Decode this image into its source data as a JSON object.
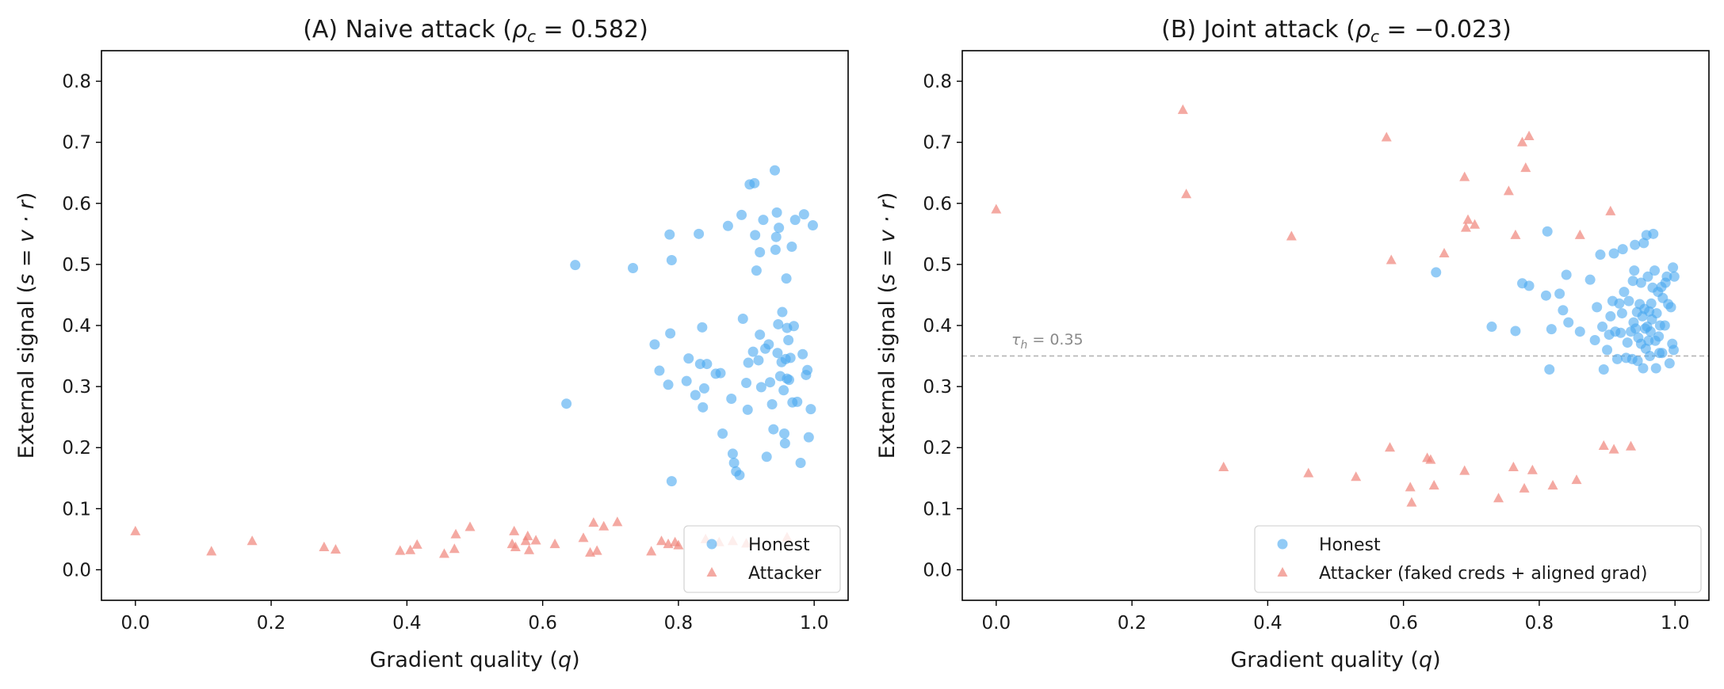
{
  "colors": {
    "honest": "#4aa8f0",
    "attacker": "#f0857a",
    "threshold": "#b0b0b0",
    "axis": "#000000"
  },
  "chart_data": [
    {
      "type": "scatter",
      "title": "(A) Naive attack (ρc = 0.582)",
      "title_parts": {
        "prefix": "(A) Naive attack (",
        "rho": "ρ",
        "sub": "c",
        "suffix": " = 0.582)"
      },
      "xlabel": "Gradient quality (q)",
      "xlabel_parts": {
        "text": "Gradient quality (",
        "var": "q",
        "close": ")"
      },
      "ylabel": "External signal (s = v · r)",
      "ylabel_parts": {
        "text": "External signal (",
        "eq": "s = v · r",
        "close": ")"
      },
      "xlim": [
        -0.05,
        1.05
      ],
      "ylim": [
        -0.05,
        0.85
      ],
      "xticks": [
        "0.0",
        "0.2",
        "0.4",
        "0.6",
        "0.8",
        "1.0"
      ],
      "yticks": [
        "0.0",
        "0.1",
        "0.2",
        "0.3",
        "0.4",
        "0.5",
        "0.6",
        "0.7",
        "0.8"
      ],
      "legend": {
        "position": "lower right",
        "entries": [
          "Honest",
          "Attacker"
        ]
      },
      "series": [
        {
          "name": "Honest",
          "marker": "circle",
          "points": [
            [
              0.635,
              0.272
            ],
            [
              0.648,
              0.499
            ],
            [
              0.733,
              0.494
            ],
            [
              0.765,
              0.369
            ],
            [
              0.772,
              0.326
            ],
            [
              0.785,
              0.303
            ],
            [
              0.787,
              0.549
            ],
            [
              0.788,
              0.387
            ],
            [
              0.79,
              0.507
            ],
            [
              0.79,
              0.145
            ],
            [
              0.812,
              0.309
            ],
            [
              0.815,
              0.346
            ],
            [
              0.825,
              0.286
            ],
            [
              0.83,
              0.55
            ],
            [
              0.832,
              0.337
            ],
            [
              0.835,
              0.397
            ],
            [
              0.836,
              0.266
            ],
            [
              0.838,
              0.297
            ],
            [
              0.842,
              0.337
            ],
            [
              0.855,
              0.321
            ],
            [
              0.862,
              0.322
            ],
            [
              0.865,
              0.223
            ],
            [
              0.873,
              0.563
            ],
            [
              0.878,
              0.28
            ],
            [
              0.88,
              0.19
            ],
            [
              0.882,
              0.175
            ],
            [
              0.885,
              0.161
            ],
            [
              0.89,
              0.155
            ],
            [
              0.893,
              0.581
            ],
            [
              0.895,
              0.411
            ],
            [
              0.9,
              0.306
            ],
            [
              0.902,
              0.262
            ],
            [
              0.903,
              0.339
            ],
            [
              0.905,
              0.631
            ],
            [
              0.91,
              0.357
            ],
            [
              0.912,
              0.633
            ],
            [
              0.913,
              0.548
            ],
            [
              0.915,
              0.49
            ],
            [
              0.918,
              0.343
            ],
            [
              0.92,
              0.385
            ],
            [
              0.92,
              0.52
            ],
            [
              0.922,
              0.299
            ],
            [
              0.925,
              0.573
            ],
            [
              0.928,
              0.362
            ],
            [
              0.93,
              0.185
            ],
            [
              0.933,
              0.369
            ],
            [
              0.935,
              0.307
            ],
            [
              0.938,
              0.271
            ],
            [
              0.94,
              0.23
            ],
            [
              0.942,
              0.654
            ],
            [
              0.943,
              0.524
            ],
            [
              0.944,
              0.545
            ],
            [
              0.945,
              0.585
            ],
            [
              0.946,
              0.355
            ],
            [
              0.947,
              0.402
            ],
            [
              0.948,
              0.56
            ],
            [
              0.95,
              0.317
            ],
            [
              0.952,
              0.34
            ],
            [
              0.953,
              0.422
            ],
            [
              0.955,
              0.294
            ],
            [
              0.956,
              0.223
            ],
            [
              0.957,
              0.207
            ],
            [
              0.958,
              0.345
            ],
            [
              0.959,
              0.477
            ],
            [
              0.96,
              0.396
            ],
            [
              0.96,
              0.313
            ],
            [
              0.962,
              0.376
            ],
            [
              0.963,
              0.311
            ],
            [
              0.965,
              0.347
            ],
            [
              0.967,
              0.529
            ],
            [
              0.968,
              0.274
            ],
            [
              0.97,
              0.399
            ],
            [
              0.972,
              0.573
            ],
            [
              0.975,
              0.275
            ],
            [
              0.98,
              0.175
            ],
            [
              0.983,
              0.353
            ],
            [
              0.985,
              0.582
            ],
            [
              0.988,
              0.319
            ],
            [
              0.99,
              0.327
            ],
            [
              0.992,
              0.217
            ],
            [
              0.995,
              0.263
            ],
            [
              0.998,
              0.564
            ]
          ]
        },
        {
          "name": "Attacker",
          "marker": "triangle",
          "points": [
            [
              0.0,
              0.063
            ],
            [
              0.112,
              0.03
            ],
            [
              0.172,
              0.047
            ],
            [
              0.278,
              0.037
            ],
            [
              0.295,
              0.033
            ],
            [
              0.39,
              0.031
            ],
            [
              0.405,
              0.032
            ],
            [
              0.415,
              0.041
            ],
            [
              0.455,
              0.026
            ],
            [
              0.47,
              0.034
            ],
            [
              0.472,
              0.058
            ],
            [
              0.493,
              0.07
            ],
            [
              0.555,
              0.042
            ],
            [
              0.558,
              0.063
            ],
            [
              0.56,
              0.037
            ],
            [
              0.575,
              0.047
            ],
            [
              0.578,
              0.055
            ],
            [
              0.58,
              0.032
            ],
            [
              0.59,
              0.048
            ],
            [
              0.618,
              0.042
            ],
            [
              0.66,
              0.052
            ],
            [
              0.67,
              0.028
            ],
            [
              0.675,
              0.077
            ],
            [
              0.68,
              0.031
            ],
            [
              0.69,
              0.071
            ],
            [
              0.71,
              0.078
            ],
            [
              0.76,
              0.03
            ],
            [
              0.775,
              0.047
            ],
            [
              0.785,
              0.042
            ],
            [
              0.795,
              0.045
            ],
            [
              0.8,
              0.04
            ],
            [
              0.84,
              0.05
            ],
            [
              0.86,
              0.045
            ],
            [
              0.88,
              0.047
            ],
            [
              0.9,
              0.043
            ],
            [
              0.96,
              0.053
            ]
          ]
        }
      ]
    },
    {
      "type": "scatter",
      "title": "(B) Joint attack (ρc = −0.023)",
      "title_parts": {
        "prefix": "(B) Joint attack (",
        "rho": "ρ",
        "sub": "c",
        "suffix": " = −0.023)"
      },
      "xlabel": "Gradient quality (q)",
      "xlabel_parts": {
        "text": "Gradient quality (",
        "var": "q",
        "close": ")"
      },
      "ylabel": "External signal (s = v · r)",
      "ylabel_parts": {
        "text": "External signal (",
        "eq": "s = v · r",
        "close": ")"
      },
      "xlim": [
        -0.05,
        1.05
      ],
      "ylim": [
        -0.05,
        0.85
      ],
      "xticks": [
        "0.0",
        "0.2",
        "0.4",
        "0.6",
        "0.8",
        "1.0"
      ],
      "yticks": [
        "0.0",
        "0.1",
        "0.2",
        "0.3",
        "0.4",
        "0.5",
        "0.6",
        "0.7",
        "0.8"
      ],
      "threshold": {
        "y": 0.35,
        "label": "τh = 0.35",
        "label_parts": {
          "tau": "τ",
          "sub": "h",
          "rest": " = 0.35"
        }
      },
      "legend": {
        "position": "lower right",
        "entries": [
          "Honest",
          "Attacker (faked creds + aligned grad)"
        ]
      },
      "series": [
        {
          "name": "Honest",
          "marker": "circle",
          "points": [
            [
              0.648,
              0.487
            ],
            [
              0.73,
              0.398
            ],
            [
              0.765,
              0.391
            ],
            [
              0.775,
              0.469
            ],
            [
              0.785,
              0.465
            ],
            [
              0.81,
              0.449
            ],
            [
              0.812,
              0.554
            ],
            [
              0.815,
              0.328
            ],
            [
              0.818,
              0.394
            ],
            [
              0.83,
              0.452
            ],
            [
              0.835,
              0.425
            ],
            [
              0.84,
              0.483
            ],
            [
              0.843,
              0.405
            ],
            [
              0.86,
              0.39
            ],
            [
              0.875,
              0.475
            ],
            [
              0.882,
              0.376
            ],
            [
              0.885,
              0.43
            ],
            [
              0.89,
              0.516
            ],
            [
              0.893,
              0.398
            ],
            [
              0.895,
              0.328
            ],
            [
              0.9,
              0.36
            ],
            [
              0.903,
              0.385
            ],
            [
              0.905,
              0.415
            ],
            [
              0.908,
              0.44
            ],
            [
              0.91,
              0.518
            ],
            [
              0.912,
              0.39
            ],
            [
              0.915,
              0.345
            ],
            [
              0.918,
              0.436
            ],
            [
              0.92,
              0.388
            ],
            [
              0.922,
              0.42
            ],
            [
              0.923,
              0.525
            ],
            [
              0.925,
              0.455
            ],
            [
              0.928,
              0.347
            ],
            [
              0.93,
              0.372
            ],
            [
              0.932,
              0.44
            ],
            [
              0.935,
              0.39
            ],
            [
              0.937,
              0.345
            ],
            [
              0.938,
              0.473
            ],
            [
              0.939,
              0.405
            ],
            [
              0.94,
              0.49
            ],
            [
              0.941,
              0.532
            ],
            [
              0.942,
              0.395
            ],
            [
              0.944,
              0.422
            ],
            [
              0.945,
              0.342
            ],
            [
              0.946,
              0.38
            ],
            [
              0.948,
              0.435
            ],
            [
              0.95,
              0.37
            ],
            [
              0.95,
              0.47
            ],
            [
              0.952,
              0.415
            ],
            [
              0.953,
              0.33
            ],
            [
              0.954,
              0.535
            ],
            [
              0.955,
              0.427
            ],
            [
              0.956,
              0.395
            ],
            [
              0.957,
              0.362
            ],
            [
              0.958,
              0.548
            ],
            [
              0.959,
              0.398
            ],
            [
              0.96,
              0.48
            ],
            [
              0.961,
              0.375
            ],
            [
              0.962,
              0.423
            ],
            [
              0.963,
              0.35
            ],
            [
              0.964,
              0.39
            ],
            [
              0.965,
              0.436
            ],
            [
              0.966,
              0.41
            ],
            [
              0.967,
              0.462
            ],
            [
              0.968,
              0.55
            ],
            [
              0.97,
              0.49
            ],
            [
              0.971,
              0.375
            ],
            [
              0.972,
              0.33
            ],
            [
              0.973,
              0.42
            ],
            [
              0.975,
              0.455
            ],
            [
              0.976,
              0.382
            ],
            [
              0.977,
              0.355
            ],
            [
              0.978,
              0.4
            ],
            [
              0.98,
              0.463
            ],
            [
              0.981,
              0.355
            ],
            [
              0.982,
              0.445
            ],
            [
              0.985,
              0.4
            ],
            [
              0.986,
              0.47
            ],
            [
              0.988,
              0.48
            ],
            [
              0.99,
              0.435
            ],
            [
              0.992,
              0.338
            ],
            [
              0.994,
              0.43
            ],
            [
              0.996,
              0.37
            ],
            [
              0.997,
              0.495
            ],
            [
              0.998,
              0.36
            ],
            [
              0.999,
              0.48
            ]
          ]
        },
        {
          "name": "Attacker (faked creds + aligned grad)",
          "marker": "triangle",
          "points": [
            [
              0.0,
              0.59
            ],
            [
              0.275,
              0.753
            ],
            [
              0.28,
              0.615
            ],
            [
              0.335,
              0.168
            ],
            [
              0.435,
              0.546
            ],
            [
              0.46,
              0.158
            ],
            [
              0.53,
              0.152
            ],
            [
              0.575,
              0.708
            ],
            [
              0.58,
              0.2
            ],
            [
              0.582,
              0.507
            ],
            [
              0.61,
              0.135
            ],
            [
              0.612,
              0.11
            ],
            [
              0.635,
              0.183
            ],
            [
              0.64,
              0.18
            ],
            [
              0.645,
              0.138
            ],
            [
              0.66,
              0.518
            ],
            [
              0.69,
              0.162
            ],
            [
              0.69,
              0.643
            ],
            [
              0.692,
              0.56
            ],
            [
              0.695,
              0.573
            ],
            [
              0.705,
              0.565
            ],
            [
              0.74,
              0.117
            ],
            [
              0.755,
              0.62
            ],
            [
              0.762,
              0.168
            ],
            [
              0.765,
              0.548
            ],
            [
              0.775,
              0.7
            ],
            [
              0.778,
              0.133
            ],
            [
              0.78,
              0.658
            ],
            [
              0.785,
              0.71
            ],
            [
              0.79,
              0.163
            ],
            [
              0.82,
              0.138
            ],
            [
              0.855,
              0.147
            ],
            [
              0.86,
              0.548
            ],
            [
              0.895,
              0.203
            ],
            [
              0.905,
              0.587
            ],
            [
              0.91,
              0.197
            ],
            [
              0.935,
              0.202
            ]
          ]
        }
      ]
    }
  ]
}
